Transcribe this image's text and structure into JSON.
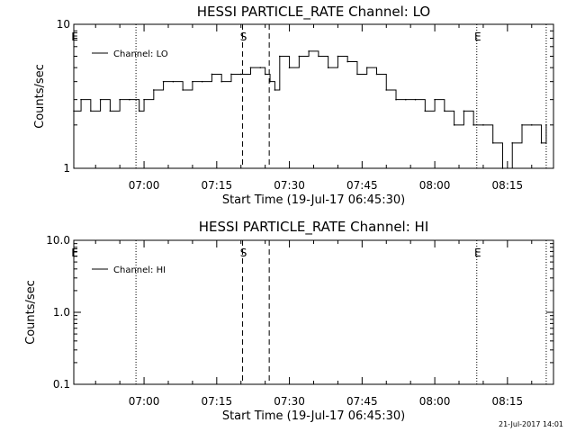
{
  "chart_data": [
    {
      "type": "line",
      "title": "HESSI PARTICLE_RATE Channel: LO",
      "xlabel": "Start Time (19-Jul-17 06:45:30)",
      "ylabel": "Counts/sec",
      "yscale": "log",
      "xlim": [
        "06:45:30",
        "08:24:30"
      ],
      "ylim": [
        1,
        10
      ],
      "x_ticks": [
        "07:00",
        "07:15",
        "07:30",
        "07:45",
        "08:00",
        "08:15"
      ],
      "y_ticks": [
        "1",
        "10"
      ],
      "legend": {
        "entries": [
          "Channel: LO"
        ],
        "placement": "top-left"
      },
      "markers": [
        {
          "label": "E",
          "time": "06:45:30",
          "style": "dotted"
        },
        {
          "label": "",
          "time": "06:58:20",
          "style": "dotted"
        },
        {
          "label": "S",
          "time": "07:20:20",
          "style": "dashed"
        },
        {
          "label": "",
          "time": "07:25:50",
          "style": "dashed"
        },
        {
          "label": "E",
          "time": "08:08:40",
          "style": "dotted"
        },
        {
          "label": "",
          "time": "08:23:00",
          "style": "dotted"
        }
      ],
      "series": [
        {
          "name": "Channel: LO",
          "x": [
            "06:45:30",
            "06:47:00",
            "06:49:00",
            "06:51:00",
            "06:53:00",
            "06:55:00",
            "06:57:00",
            "06:59:00",
            "07:00:00",
            "07:02:00",
            "07:04:00",
            "07:06:00",
            "07:08:00",
            "07:10:00",
            "07:12:00",
            "07:14:00",
            "07:16:00",
            "07:18:00",
            "07:20:00",
            "07:22:00",
            "07:24:00",
            "07:25:00",
            "07:26:00",
            "07:27:00",
            "07:28:00",
            "07:30:00",
            "07:32:00",
            "07:34:00",
            "07:36:00",
            "07:38:00",
            "07:40:00",
            "07:42:00",
            "07:44:00",
            "07:46:00",
            "07:48:00",
            "07:50:00",
            "07:52:00",
            "07:54:00",
            "07:56:00",
            "07:58:00",
            "08:00:00",
            "08:02:00",
            "08:04:00",
            "08:06:00",
            "08:08:00",
            "08:10:00",
            "08:12:00",
            "08:14:00",
            "08:16:00",
            "08:18:00",
            "08:20:00",
            "08:22:00",
            "08:23:00"
          ],
          "values": [
            2.5,
            3,
            2.5,
            3,
            2.5,
            3,
            3,
            2.5,
            3,
            3.5,
            4,
            4,
            3.5,
            4,
            4,
            4.5,
            4,
            4.5,
            4.5,
            5,
            5,
            4.5,
            4,
            3.5,
            6,
            5,
            6,
            6.5,
            6,
            5,
            6,
            5.5,
            4.5,
            5,
            4.5,
            3.5,
            3,
            3,
            3,
            2.5,
            3,
            2.5,
            2,
            2.5,
            2,
            2,
            1.5,
            1,
            1.5,
            2,
            2,
            1.5,
            2
          ]
        }
      ]
    },
    {
      "type": "line",
      "title": "HESSI PARTICLE_RATE Channel: HI",
      "xlabel": "Start Time (19-Jul-17 06:45:30)",
      "ylabel": "Counts/sec",
      "yscale": "log",
      "xlim": [
        "06:45:30",
        "08:24:30"
      ],
      "ylim": [
        0.1,
        10.0
      ],
      "x_ticks": [
        "07:00",
        "07:15",
        "07:30",
        "07:45",
        "08:00",
        "08:15"
      ],
      "y_ticks": [
        "0.1",
        "1.0",
        "10.0"
      ],
      "legend": {
        "entries": [
          "Channel: HI"
        ],
        "placement": "top-left"
      },
      "markers": [
        {
          "label": "E",
          "time": "06:45:30",
          "style": "dotted"
        },
        {
          "label": "",
          "time": "06:58:20",
          "style": "dotted"
        },
        {
          "label": "S",
          "time": "07:20:20",
          "style": "dashed"
        },
        {
          "label": "",
          "time": "07:25:50",
          "style": "dashed"
        },
        {
          "label": "E",
          "time": "08:08:40",
          "style": "dotted"
        },
        {
          "label": "",
          "time": "08:23:00",
          "style": "dotted"
        }
      ],
      "series": [
        {
          "name": "Channel: HI",
          "x": [],
          "values": []
        }
      ]
    }
  ],
  "footer": {
    "timestamp": "21-Jul-2017 14:01"
  }
}
